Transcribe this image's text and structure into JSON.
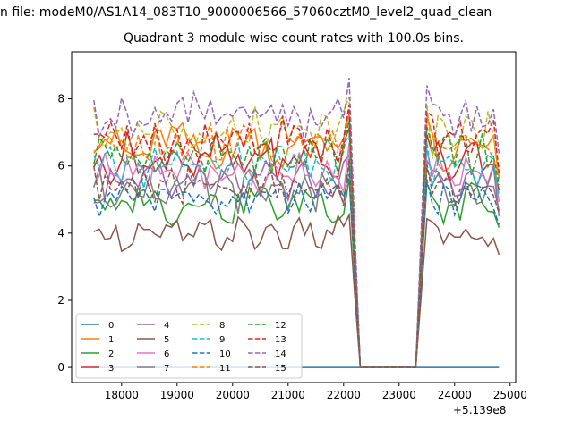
{
  "suptitle": "n file: modeM0/AS1A14_083T10_9000006566_57060cztM0_level2_quad_clean",
  "chart_data": {
    "type": "line",
    "title": "Quadrant 3 module wise count rates with 100.0s bins.",
    "x_offset_label": "+5.139e8",
    "xlabel": "",
    "ylabel": "",
    "xlim": [
      17100,
      25100
    ],
    "ylim": [
      -0.45,
      9.4
    ],
    "xticks": [
      18000,
      19000,
      20000,
      21000,
      22000,
      23000,
      24000,
      25000
    ],
    "yticks": [
      0,
      2,
      4,
      6,
      8
    ],
    "legend_position": "lower-left",
    "legend_columns": 4,
    "segments": {
      "active1": [
        17500,
        22100
      ],
      "drop_to": 22300,
      "gap_end": 23300,
      "active2": [
        23500,
        24800
      ],
      "bin_size": 100
    },
    "series": [
      {
        "name": "0",
        "color": "#1f77b4",
        "dash": "solid",
        "level": 0.0,
        "amp": 0.0,
        "freq": 0.0
      },
      {
        "name": "1",
        "color": "#ff7f0e",
        "dash": "solid",
        "level": 6.6,
        "amp": 0.35,
        "freq": 1.3
      },
      {
        "name": "2",
        "color": "#2ca02c",
        "dash": "solid",
        "level": 4.9,
        "amp": 0.3,
        "freq": 1.7
      },
      {
        "name": "3",
        "color": "#d62728",
        "dash": "solid",
        "level": 6.2,
        "amp": 0.35,
        "freq": 2.1
      },
      {
        "name": "4",
        "color": "#9467bd",
        "dash": "solid",
        "level": 5.5,
        "amp": 0.3,
        "freq": 2.5
      },
      {
        "name": "5",
        "color": "#8c564b",
        "dash": "solid",
        "level": 3.95,
        "amp": 0.25,
        "freq": 2.9
      },
      {
        "name": "6",
        "color": "#e377c2",
        "dash": "solid",
        "level": 5.8,
        "amp": 0.3,
        "freq": 3.3
      },
      {
        "name": "7",
        "color": "#7f7f7f",
        "dash": "solid",
        "level": 5.3,
        "amp": 0.3,
        "freq": 3.7
      },
      {
        "name": "8",
        "color": "#bcbd22",
        "dash": "dashed",
        "level": 7.0,
        "amp": 0.35,
        "freq": 4.1
      },
      {
        "name": "9",
        "color": "#17becf",
        "dash": "dashed",
        "level": 6.0,
        "amp": 0.3,
        "freq": 4.5
      },
      {
        "name": "10",
        "color": "#1f77b4",
        "dash": "dashed",
        "level": 5.0,
        "amp": 0.25,
        "freq": 4.9
      },
      {
        "name": "11",
        "color": "#ff7f0e",
        "dash": "dashed",
        "level": 6.7,
        "amp": 0.3,
        "freq": 5.3
      },
      {
        "name": "12",
        "color": "#2ca02c",
        "dash": "dashed",
        "level": 6.4,
        "amp": 0.3,
        "freq": 5.7
      },
      {
        "name": "13",
        "color": "#d62728",
        "dash": "dashed",
        "level": 6.8,
        "amp": 0.35,
        "freq": 6.1
      },
      {
        "name": "14",
        "color": "#9467bd",
        "dash": "dashed",
        "level": 7.5,
        "amp": 0.35,
        "freq": 6.5
      },
      {
        "name": "15",
        "color": "#8c564b",
        "dash": "dashed",
        "level": 5.4,
        "amp": 0.3,
        "freq": 6.9
      }
    ]
  }
}
